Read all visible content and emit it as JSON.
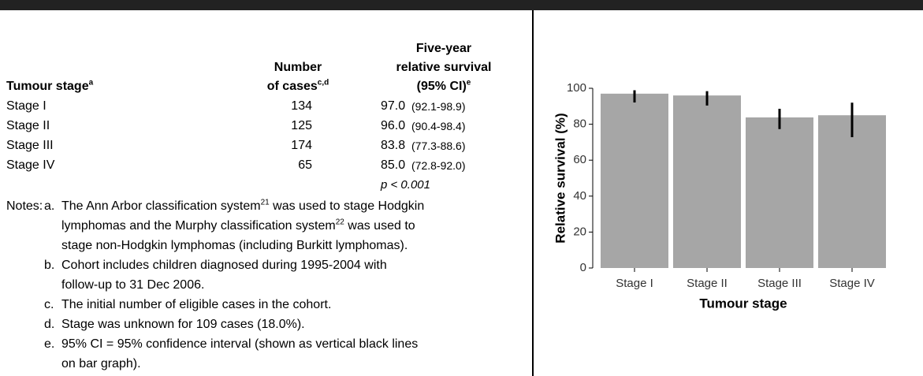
{
  "table": {
    "header": [
      [
        "Tumour stage"
      ],
      [
        "Number",
        "of cases"
      ],
      [
        "Five-year",
        "relative survival",
        "(95% CI)"
      ]
    ],
    "header_sup": [
      "a",
      "c,d",
      "e"
    ],
    "rows": [
      [
        "Stage I",
        "134",
        "97.0",
        "(92.1-98.9)"
      ],
      [
        "Stage II",
        "125",
        "96.0",
        "(90.4-98.4)"
      ],
      [
        "Stage III",
        "174",
        "83.8",
        "(77.3-88.6)"
      ],
      [
        "Stage IV",
        "65",
        "85.0",
        "(72.8-92.0)"
      ]
    ],
    "p_value": "p < 0.001"
  },
  "notes": {
    "label": "Notes:",
    "items": [
      {
        "letter": "a.",
        "lines": [
          [
            {
              "text": "The Ann Arbor classification system"
            },
            {
              "sup": "21"
            },
            {
              "text": " was used to stage Hodgkin"
            }
          ],
          [
            {
              "text": "lymphomas and the Murphy classification system"
            },
            {
              "sup": "22"
            },
            {
              "text": " was used to"
            }
          ],
          [
            {
              "text": "stage non-Hodgkin lymphomas (including Burkitt lymphomas)."
            }
          ]
        ]
      },
      {
        "letter": "b.",
        "lines": [
          [
            {
              "text": "Cohort includes children diagnosed during 1995-2004 with"
            }
          ],
          [
            {
              "text": "follow-up to 31 Dec 2006."
            }
          ]
        ]
      },
      {
        "letter": "c.",
        "lines": [
          [
            {
              "text": "The initial number of eligible cases in the cohort."
            }
          ]
        ]
      },
      {
        "letter": "d.",
        "lines": [
          [
            {
              "text": "Stage was unknown for 109 cases (18.0%)."
            }
          ]
        ]
      },
      {
        "letter": "e.",
        "lines": [
          [
            {
              "text": "95% CI = 95% confidence interval (shown as vertical black lines"
            }
          ],
          [
            {
              "text": "on bar graph)."
            }
          ]
        ]
      }
    ]
  },
  "chart_data": {
    "type": "bar",
    "categories": [
      "Stage I",
      "Stage II",
      "Stage III",
      "Stage IV"
    ],
    "values": [
      97.0,
      96.0,
      83.8,
      85.0
    ],
    "ci_low": [
      92.1,
      90.4,
      77.3,
      72.8
    ],
    "ci_high": [
      98.9,
      98.4,
      88.6,
      92.0
    ],
    "color": "#a6a6a6",
    "error_color": "#000000",
    "xlabel": "Tumour stage",
    "ylabel": "Relative survival (%)",
    "ylim": [
      0,
      100
    ],
    "yticks": [
      0,
      20,
      40,
      60,
      80,
      100
    ]
  }
}
